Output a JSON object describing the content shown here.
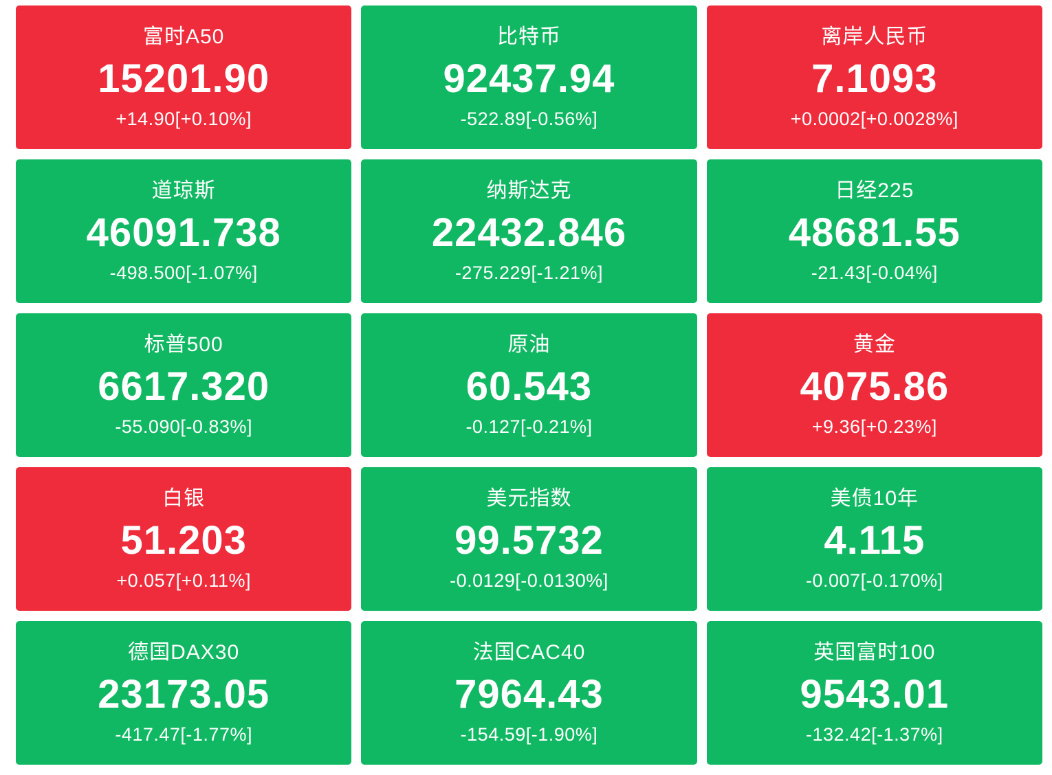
{
  "colors": {
    "up": "#ee2c3c",
    "down": "#11b863"
  },
  "tiles": [
    {
      "name": "富时A50",
      "price": "15201.90",
      "change": "+14.90[+0.10%]",
      "trend": "up"
    },
    {
      "name": "比特币",
      "price": "92437.94",
      "change": "-522.89[-0.56%]",
      "trend": "down"
    },
    {
      "name": "离岸人民币",
      "price": "7.1093",
      "change": "+0.0002[+0.0028%]",
      "trend": "up"
    },
    {
      "name": "道琼斯",
      "price": "46091.738",
      "change": "-498.500[-1.07%]",
      "trend": "down"
    },
    {
      "name": "纳斯达克",
      "price": "22432.846",
      "change": "-275.229[-1.21%]",
      "trend": "down"
    },
    {
      "name": "日经225",
      "price": "48681.55",
      "change": "-21.43[-0.04%]",
      "trend": "down"
    },
    {
      "name": "标普500",
      "price": "6617.320",
      "change": "-55.090[-0.83%]",
      "trend": "down"
    },
    {
      "name": "原油",
      "price": "60.543",
      "change": "-0.127[-0.21%]",
      "trend": "down"
    },
    {
      "name": "黄金",
      "price": "4075.86",
      "change": "+9.36[+0.23%]",
      "trend": "up"
    },
    {
      "name": "白银",
      "price": "51.203",
      "change": "+0.057[+0.11%]",
      "trend": "up"
    },
    {
      "name": "美元指数",
      "price": "99.5732",
      "change": "-0.0129[-0.0130%]",
      "trend": "down"
    },
    {
      "name": "美债10年",
      "price": "4.115",
      "change": "-0.007[-0.170%]",
      "trend": "down"
    },
    {
      "name": "德国DAX30",
      "price": "23173.05",
      "change": "-417.47[-1.77%]",
      "trend": "down"
    },
    {
      "name": "法国CAC40",
      "price": "7964.43",
      "change": "-154.59[-1.90%]",
      "trend": "down"
    },
    {
      "name": "英国富时100",
      "price": "9543.01",
      "change": "-132.42[-1.37%]",
      "trend": "down"
    }
  ]
}
